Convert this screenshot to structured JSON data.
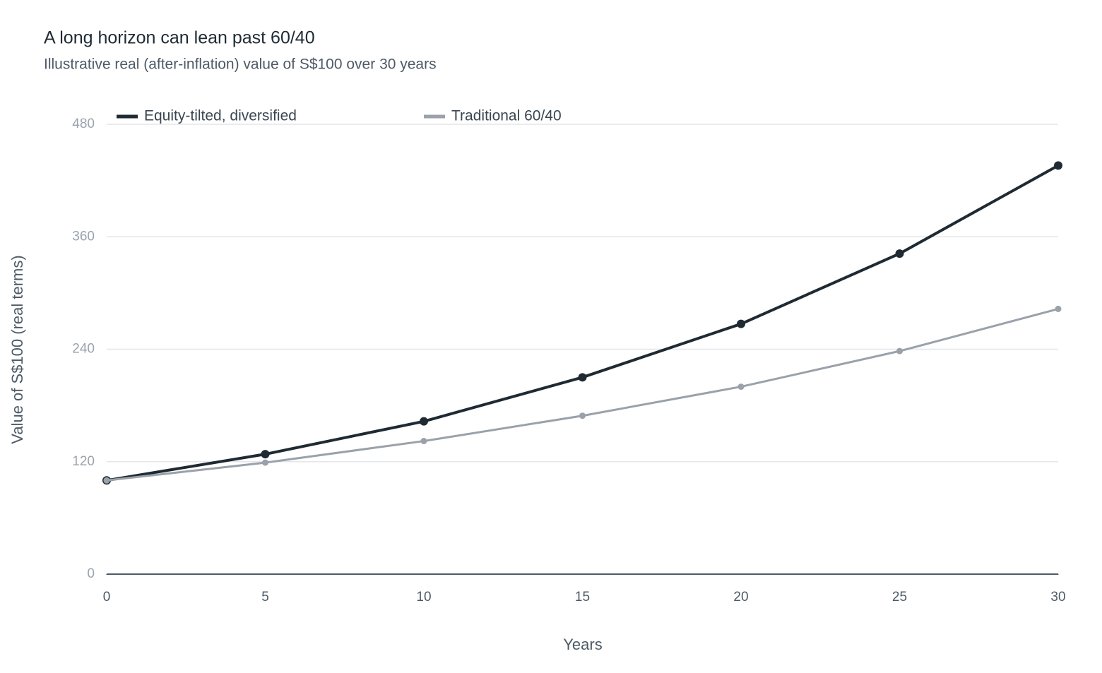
{
  "chart_data": {
    "type": "line",
    "title": "A long horizon can lean past 60/40",
    "subtitle": "Illustrative real (after-inflation) value of S$100 over 30 years",
    "x_label": "Years",
    "y_label": "Value of S$100 (real terms)",
    "x": [
      0,
      5,
      10,
      15,
      20,
      25,
      30
    ],
    "xlim": [
      0,
      30
    ],
    "xticks": [
      0,
      5,
      10,
      15,
      20,
      25,
      30
    ],
    "ylim": [
      0,
      480
    ],
    "yticks": [
      0,
      120,
      240,
      360,
      480
    ],
    "grid": true,
    "legend": "top-left",
    "series": [
      {
        "name": "Equity-tilted, diversified",
        "color": "#1f2a33",
        "values": [
          100,
          128,
          163,
          210,
          267,
          342,
          436
        ]
      },
      {
        "name": "Traditional 60/40",
        "color": "#9aa1aa",
        "values": [
          100,
          119,
          142,
          169,
          200,
          238,
          283
        ]
      }
    ]
  }
}
